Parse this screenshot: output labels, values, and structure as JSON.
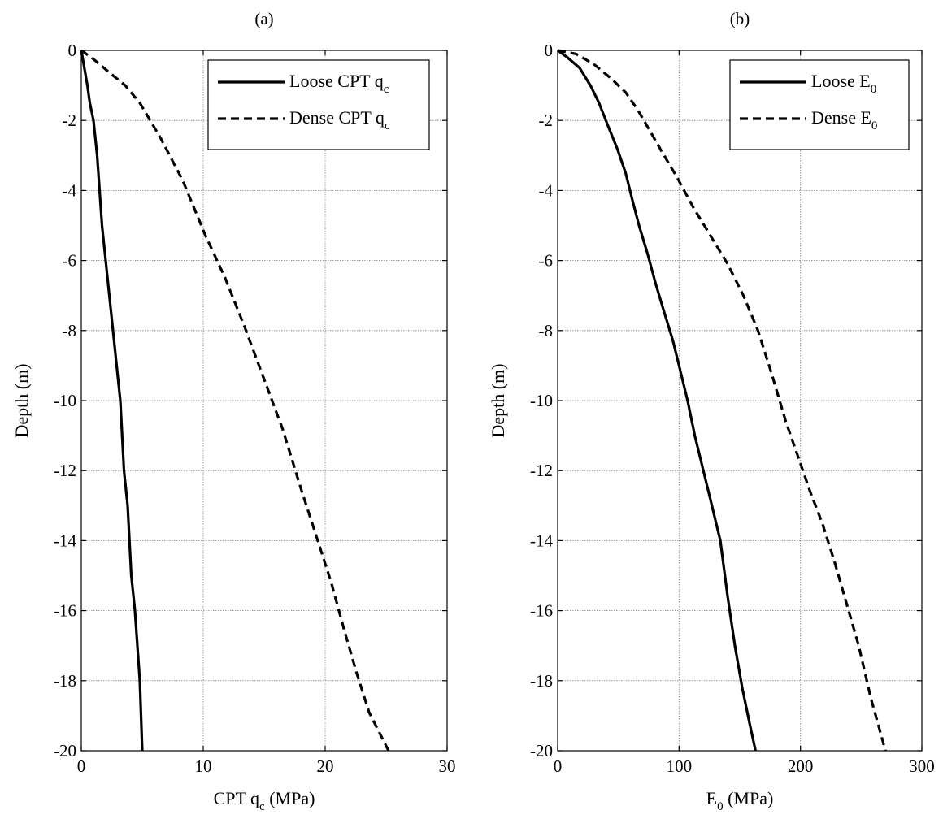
{
  "chart_data": [
    {
      "type": "line",
      "panel_label": "(a)",
      "xlabel_main": "CPT q",
      "xlabel_sub": "c",
      "xlabel_unit": " (MPa)",
      "ylabel": "Depth (m)",
      "xlim": [
        0,
        30
      ],
      "ylim": [
        -20,
        0
      ],
      "xticks": [
        0,
        10,
        20,
        30
      ],
      "yticks": [
        0,
        -2,
        -4,
        -6,
        -8,
        -10,
        -12,
        -14,
        -16,
        -18,
        -20
      ],
      "xtick_labels": [
        "0",
        "10",
        "20",
        "30"
      ],
      "ytick_labels": [
        "0",
        "-2",
        "-4",
        "-6",
        "-8",
        "-10",
        "-12",
        "-14",
        "-16",
        "-18",
        "-20"
      ],
      "grid": true,
      "legend_position": "top-right",
      "series": [
        {
          "name_main": "Loose CPT q",
          "name_sub": "c",
          "style": "solid",
          "x": [
            0,
            0.5,
            0.7,
            1.0,
            1.3,
            1.5,
            1.7,
            2.0,
            2.3,
            2.6,
            2.9,
            3.2,
            3.5,
            3.8,
            4.1,
            4.4,
            4.6,
            4.8,
            5.0
          ],
          "y": [
            0,
            -1.0,
            -1.5,
            -2.0,
            -3.0,
            -4.0,
            -5.0,
            -6.0,
            -7.0,
            -8.0,
            -9.0,
            -10.0,
            -12.0,
            -13.0,
            -15.0,
            -16.0,
            -17.0,
            -18.0,
            -20.0
          ]
        },
        {
          "name_main": "Dense CPT q",
          "name_sub": "c",
          "style": "dashed",
          "x": [
            0,
            1.0,
            2.2,
            3.6,
            4.8,
            6.5,
            8.3,
            10.2,
            11.8,
            13.4,
            15.0,
            16.5,
            18.0,
            19.3,
            20.5,
            21.6,
            22.6,
            23.6,
            25.2
          ],
          "y": [
            0,
            -0.25,
            -0.6,
            -1.0,
            -1.5,
            -2.5,
            -3.7,
            -5.3,
            -6.5,
            -7.9,
            -9.4,
            -10.8,
            -12.5,
            -13.9,
            -15.2,
            -16.6,
            -17.8,
            -18.9,
            -20.0
          ]
        }
      ]
    },
    {
      "type": "line",
      "panel_label": "(b)",
      "xlabel_main": "E",
      "xlabel_sub": "0",
      "xlabel_unit": " (MPa)",
      "ylabel": "Depth (m)",
      "xlim": [
        0,
        300
      ],
      "ylim": [
        -20,
        0
      ],
      "xticks": [
        0,
        100,
        200,
        300
      ],
      "yticks": [
        0,
        -2,
        -4,
        -6,
        -8,
        -10,
        -12,
        -14,
        -16,
        -18,
        -20
      ],
      "xtick_labels": [
        "0",
        "100",
        "200",
        "300"
      ],
      "ytick_labels": [
        "0",
        "-2",
        "-4",
        "-6",
        "-8",
        "-10",
        "-12",
        "-14",
        "-16",
        "-18",
        "-20"
      ],
      "grid": true,
      "legend_position": "top-right",
      "series": [
        {
          "name_main": "Loose E",
          "name_sub": "0",
          "style": "solid",
          "x": [
            0,
            8,
            18,
            27,
            34,
            42,
            49,
            56,
            61,
            67,
            74,
            81,
            88,
            95,
            100,
            107,
            113,
            120,
            127,
            134,
            140,
            146,
            152,
            158,
            163
          ],
          "y": [
            0,
            -0.2,
            -0.5,
            -1.0,
            -1.5,
            -2.2,
            -2.8,
            -3.5,
            -4.2,
            -5.0,
            -5.8,
            -6.7,
            -7.5,
            -8.3,
            -9.0,
            -10.0,
            -11.0,
            -12.0,
            -13.0,
            -14.0,
            -15.6,
            -17.0,
            -18.2,
            -19.2,
            -20.0
          ]
        },
        {
          "name_main": "Dense E",
          "name_sub": "0",
          "style": "dashed",
          "x": [
            0,
            15,
            30,
            44,
            56,
            66,
            76,
            86,
            98,
            112,
            126,
            140,
            153,
            165,
            176,
            188,
            198,
            208,
            218,
            228,
            238,
            248,
            258,
            270
          ],
          "y": [
            0,
            -0.1,
            -0.4,
            -0.8,
            -1.2,
            -1.7,
            -2.3,
            -2.9,
            -3.6,
            -4.5,
            -5.3,
            -6.1,
            -7.0,
            -8.0,
            -9.2,
            -10.6,
            -11.6,
            -12.6,
            -13.5,
            -14.6,
            -15.8,
            -17.0,
            -18.5,
            -20.0
          ]
        }
      ]
    }
  ]
}
